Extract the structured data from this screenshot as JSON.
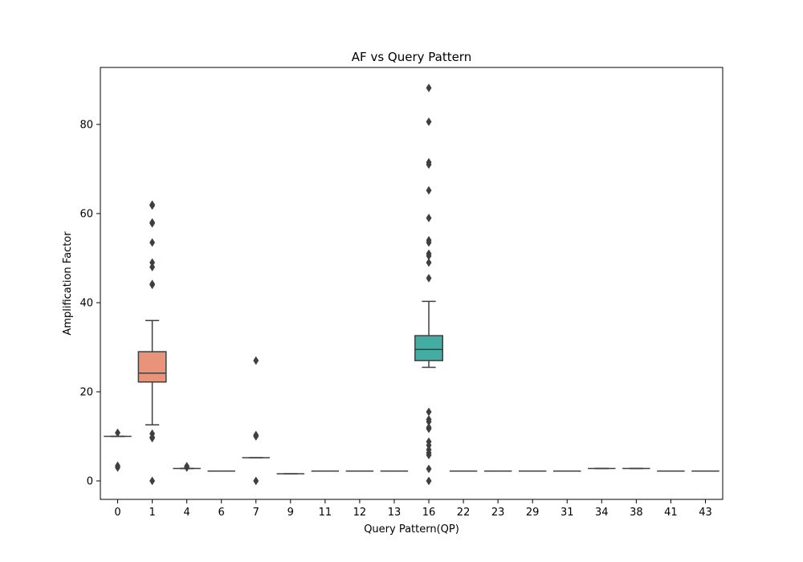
{
  "chart_data": {
    "type": "box",
    "title": "AF vs Query Pattern",
    "xlabel": "Query Pattern(QP)",
    "ylabel": "Amplification Factor",
    "ylim": [
      -4.5,
      92.5
    ],
    "yticks": [
      0,
      20,
      40,
      60,
      80
    ],
    "grid": false,
    "categories": [
      "0",
      "1",
      "4",
      "6",
      "7",
      "9",
      "11",
      "12",
      "13",
      "16",
      "22",
      "23",
      "29",
      "31",
      "34",
      "38",
      "41",
      "43"
    ],
    "boxes": [
      {
        "category": "0",
        "q1": 10.0,
        "median": 10.0,
        "q3": 10.0,
        "whisker_low": 10.0,
        "whisker_high": 10.0,
        "outliers": [
          10.8,
          3.0,
          3.4
        ],
        "color": "#4c72b0"
      },
      {
        "category": "1",
        "q1": 22.2,
        "median": 24.2,
        "q3": 29.0,
        "whisker_low": 12.6,
        "whisker_high": 36.0,
        "outliers": [
          62.0,
          61.8,
          58.0,
          57.8,
          53.5,
          49.0,
          48.0,
          44.2,
          44.0,
          10.6,
          9.8,
          9.6,
          0.0
        ],
        "color": "#e8937a"
      },
      {
        "category": "4",
        "q1": 2.8,
        "median": 2.8,
        "q3": 2.8,
        "whisker_low": 2.8,
        "whisker_high": 2.8,
        "outliers": [
          3.3,
          3.0
        ],
        "color": "#4c72b0"
      },
      {
        "category": "6",
        "q1": 2.2,
        "median": 2.2,
        "q3": 2.2,
        "whisker_low": 2.2,
        "whisker_high": 2.2,
        "outliers": [],
        "color": "#4c72b0"
      },
      {
        "category": "7",
        "q1": 5.2,
        "median": 5.2,
        "q3": 5.2,
        "whisker_low": 5.2,
        "whisker_high": 5.2,
        "outliers": [
          27.0,
          10.3,
          10.0,
          0.0
        ],
        "color": "#4c72b0"
      },
      {
        "category": "9",
        "q1": 1.6,
        "median": 1.6,
        "q3": 1.6,
        "whisker_low": 1.6,
        "whisker_high": 1.6,
        "outliers": [],
        "color": "#4c72b0"
      },
      {
        "category": "11",
        "q1": 2.2,
        "median": 2.2,
        "q3": 2.2,
        "whisker_low": 2.2,
        "whisker_high": 2.2,
        "outliers": [],
        "color": "#4c72b0"
      },
      {
        "category": "12",
        "q1": 2.2,
        "median": 2.2,
        "q3": 2.2,
        "whisker_low": 2.2,
        "whisker_high": 2.2,
        "outliers": [],
        "color": "#4c72b0"
      },
      {
        "category": "13",
        "q1": 2.2,
        "median": 2.2,
        "q3": 2.2,
        "whisker_low": 2.2,
        "whisker_high": 2.2,
        "outliers": [],
        "color": "#4c72b0"
      },
      {
        "category": "16",
        "q1": 27.0,
        "median": 29.5,
        "q3": 32.6,
        "whisker_low": 25.5,
        "whisker_high": 40.3,
        "outliers": [
          88.2,
          80.6,
          71.5,
          71.0,
          65.2,
          59.0,
          54.0,
          53.5,
          51.0,
          50.5,
          49.0,
          45.5,
          15.5,
          13.8,
          13.3,
          12.0,
          11.7,
          8.8,
          8.0,
          7.0,
          6.3,
          5.8,
          2.7,
          0.0
        ],
        "color": "#43aca3"
      },
      {
        "category": "22",
        "q1": 2.2,
        "median": 2.2,
        "q3": 2.2,
        "whisker_low": 2.2,
        "whisker_high": 2.2,
        "outliers": [],
        "color": "#4c72b0"
      },
      {
        "category": "23",
        "q1": 2.2,
        "median": 2.2,
        "q3": 2.2,
        "whisker_low": 2.2,
        "whisker_high": 2.2,
        "outliers": [],
        "color": "#4c72b0"
      },
      {
        "category": "29",
        "q1": 2.2,
        "median": 2.2,
        "q3": 2.2,
        "whisker_low": 2.2,
        "whisker_high": 2.2,
        "outliers": [],
        "color": "#4c72b0"
      },
      {
        "category": "31",
        "q1": 2.2,
        "median": 2.2,
        "q3": 2.2,
        "whisker_low": 2.2,
        "whisker_high": 2.2,
        "outliers": [],
        "color": "#4c72b0"
      },
      {
        "category": "34",
        "q1": 2.8,
        "median": 2.8,
        "q3": 2.8,
        "whisker_low": 2.8,
        "whisker_high": 2.8,
        "outliers": [],
        "color": "#4c72b0"
      },
      {
        "category": "38",
        "q1": 2.8,
        "median": 2.8,
        "q3": 2.8,
        "whisker_low": 2.8,
        "whisker_high": 2.8,
        "outliers": [],
        "color": "#4c72b0"
      },
      {
        "category": "41",
        "q1": 2.2,
        "median": 2.2,
        "q3": 2.2,
        "whisker_low": 2.2,
        "whisker_high": 2.2,
        "outliers": [],
        "color": "#4c72b0"
      },
      {
        "category": "43",
        "q1": 2.2,
        "median": 2.2,
        "q3": 2.2,
        "whisker_low": 2.2,
        "whisker_high": 2.2,
        "outliers": [],
        "color": "#4c72b0"
      }
    ],
    "line_color": "#3f3f3f"
  }
}
